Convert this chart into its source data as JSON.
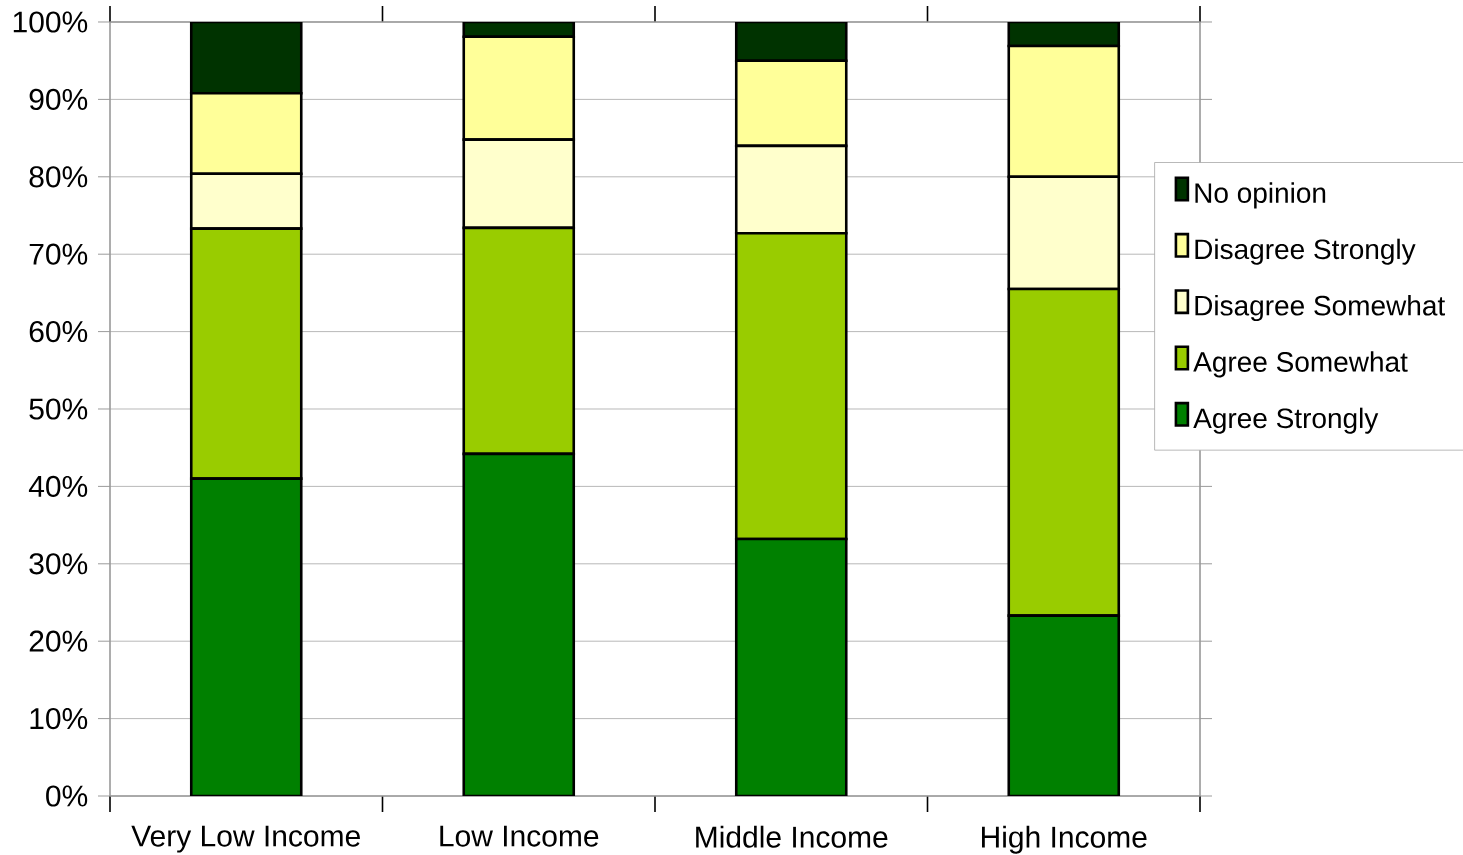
{
  "chart_data": {
    "type": "bar",
    "stacked": true,
    "categories": [
      "Very Low Income",
      "Low Income",
      "Middle Income",
      "High Income"
    ],
    "series": [
      {
        "name": "Agree Strongly",
        "color": "#008000",
        "values": [
          41.0,
          44.2,
          33.2,
          23.3
        ]
      },
      {
        "name": "Agree Somewhat",
        "color": "#99cc00",
        "values": [
          32.3,
          29.2,
          39.5,
          42.2
        ]
      },
      {
        "name": "Disagree Somewhat",
        "color": "#ffffcc",
        "values": [
          7.1,
          11.4,
          11.3,
          14.5
        ]
      },
      {
        "name": "Disagree Strongly",
        "color": "#ffff99",
        "values": [
          10.4,
          13.3,
          11.0,
          16.9
        ]
      },
      {
        "name": "No opinion",
        "color": "#003300",
        "values": [
          9.2,
          1.9,
          5.0,
          3.1
        ]
      }
    ],
    "ylim": [
      0,
      100
    ],
    "yticks": [
      {
        "value": 0,
        "label": "0%"
      },
      {
        "value": 10,
        "label": "10%"
      },
      {
        "value": 20,
        "label": "20%"
      },
      {
        "value": 30,
        "label": "30%"
      },
      {
        "value": 40,
        "label": "40%"
      },
      {
        "value": 50,
        "label": "50%"
      },
      {
        "value": 60,
        "label": "60%"
      },
      {
        "value": 70,
        "label": "70%"
      },
      {
        "value": 80,
        "label": "80%"
      },
      {
        "value": 90,
        "label": "90%"
      },
      {
        "value": 100,
        "label": "100%"
      }
    ],
    "grid": "y",
    "legend": "right"
  }
}
